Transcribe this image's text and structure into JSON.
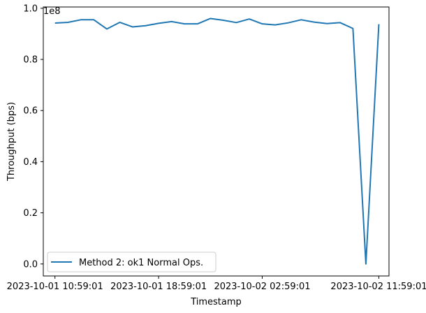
{
  "chart_data": {
    "type": "line",
    "title": "",
    "xlabel": "Timestamp",
    "ylabel": "Throughput (bps)",
    "y_offset_label": "1e8",
    "y_scale": 100000000,
    "xlim": [
      "2023-10-01 10:05:00",
      "2023-10-02 12:46:00"
    ],
    "ylim": [
      -4700000,
      100500000
    ],
    "x_ticks": [
      "2023-10-01 10:59:01",
      "2023-10-01 18:59:01",
      "2023-10-02 02:59:01",
      "2023-10-02 11:59:01"
    ],
    "y_ticks": [
      0,
      20000000,
      40000000,
      60000000,
      80000000,
      100000000
    ],
    "y_tick_labels": [
      "0.0",
      "0.2",
      "0.4",
      "0.6",
      "0.8",
      "1.0"
    ],
    "grid": false,
    "legend_position": "lower-left",
    "series": [
      {
        "name": "Method 2: ok1 Normal Ops.",
        "color": "#1f77b4",
        "x": [
          "2023-10-01 10:59:01",
          "2023-10-01 11:59:01",
          "2023-10-01 12:59:01",
          "2023-10-01 13:59:01",
          "2023-10-01 14:59:01",
          "2023-10-01 15:59:01",
          "2023-10-01 16:59:01",
          "2023-10-01 17:59:01",
          "2023-10-01 18:59:01",
          "2023-10-01 19:59:01",
          "2023-10-01 20:59:01",
          "2023-10-01 21:59:01",
          "2023-10-01 22:59:01",
          "2023-10-01 23:59:01",
          "2023-10-02 00:59:01",
          "2023-10-02 01:59:01",
          "2023-10-02 02:59:01",
          "2023-10-02 03:59:01",
          "2023-10-02 04:59:01",
          "2023-10-02 05:59:01",
          "2023-10-02 06:59:01",
          "2023-10-02 07:59:01",
          "2023-10-02 08:59:01",
          "2023-10-02 09:59:01",
          "2023-10-02 10:59:01",
          "2023-10-02 11:59:01"
        ],
        "values": [
          94200000,
          94500000,
          95500000,
          95500000,
          91900000,
          94500000,
          92700000,
          93200000,
          94100000,
          94800000,
          93900000,
          93900000,
          96000000,
          95300000,
          94400000,
          95800000,
          93900000,
          93500000,
          94300000,
          95500000,
          94600000,
          94000000,
          94400000,
          92100000,
          0,
          93800000
        ]
      }
    ]
  }
}
